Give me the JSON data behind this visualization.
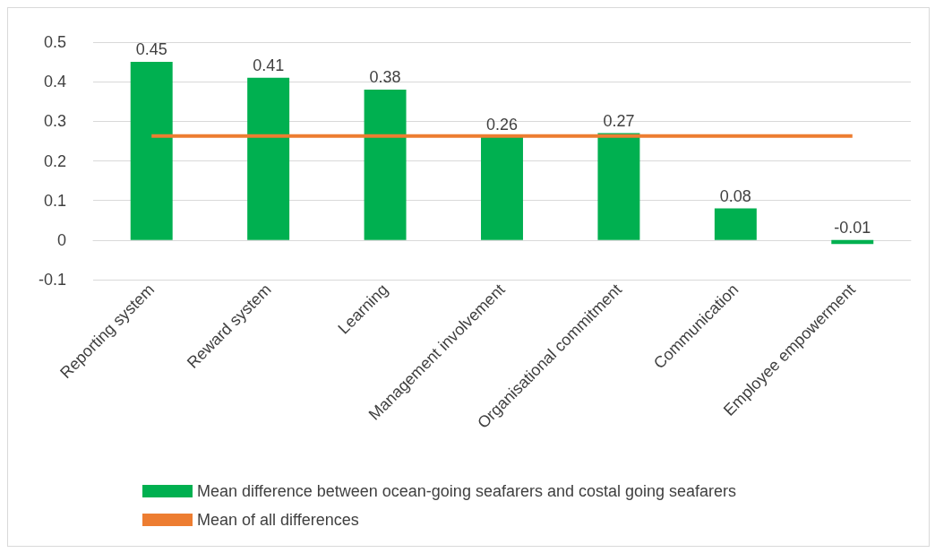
{
  "chart_data": {
    "type": "bar",
    "categories": [
      "Reporting system",
      "Reward system",
      "Learning",
      "Management involvement",
      "Organisational commitment",
      "Communication",
      "Employee empowerment"
    ],
    "series": [
      {
        "name": "Mean difference between ocean-going seafarers and costal going seafarers",
        "color": "#00b050",
        "values": [
          0.45,
          0.41,
          0.38,
          0.26,
          0.27,
          0.08,
          -0.01
        ],
        "value_labels": [
          "0.45",
          "0.41",
          "0.38",
          "0.26",
          "0.27",
          "0.08",
          "-0.01"
        ]
      },
      {
        "name": "Mean of all differences",
        "type": "line",
        "color": "#ed7d31",
        "values": [
          0.263,
          0.263,
          0.263,
          0.263,
          0.263,
          0.263,
          0.263
        ],
        "marker": "none"
      }
    ],
    "ylim": [
      -0.1,
      0.5
    ],
    "yticks": [
      -0.1,
      0,
      0.1,
      0.2,
      0.3,
      0.4,
      0.5
    ],
    "grid": "y",
    "legend": "bottom"
  }
}
